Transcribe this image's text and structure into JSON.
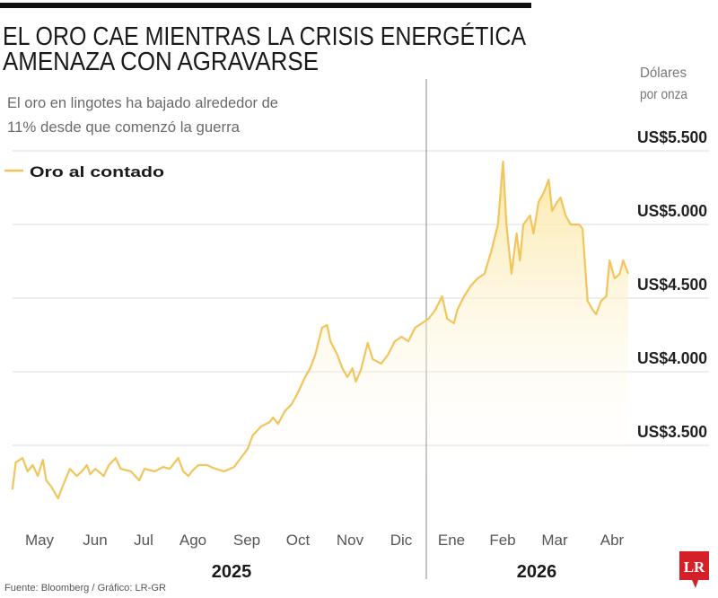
{
  "header": {
    "title_line1": "EL ORO CAE MIENTRAS LA CRISIS ENERGÉTICA",
    "title_line2": "AMENAZA CON AGRAVARSE",
    "subtitle_line1": "El oro en lingotes ha bajado alrededor de",
    "subtitle_line2": "11% desde que comenzó la guerra"
  },
  "footer": {
    "source": "Fuente: Bloomberg / Gráfico: LR-GR",
    "logo": "LR",
    "logo_color": "#d42027"
  },
  "chart_data": {
    "type": "area",
    "title": "EL ORO CAE MIENTRAS LA CRISIS ENERGÉTICA AMENAZA CON AGRAVARSE",
    "ylabel_line1": "Dólares",
    "ylabel_line2": "por onza",
    "ylim": [
      3000,
      5500
    ],
    "yticks": [
      5500,
      5000,
      4500,
      4000,
      3500
    ],
    "ytick_labels": [
      "US$5.500",
      "US$5.000",
      "US$4.500",
      "US$4.000",
      "US$3.500"
    ],
    "xticks": [
      "May",
      "Jun",
      "Jul",
      "Ago",
      "Sep",
      "Oct",
      "Nov",
      "Dic",
      "Ene",
      "Feb",
      "Mar",
      "Abr"
    ],
    "years": [
      "2025",
      "2026"
    ],
    "grid": true,
    "legend_position": "top-left",
    "line_color": "#f2c55c",
    "fill_color": "#fbe6a0",
    "series": [
      {
        "name": "Oro al contado",
        "x": [
          "2025-04-29",
          "2025-05-01",
          "2025-05-05",
          "2025-05-08",
          "2025-05-11",
          "2025-05-14",
          "2025-05-17",
          "2025-05-19",
          "2025-05-22",
          "2025-05-26",
          "2025-05-29",
          "2025-06-02",
          "2025-06-06",
          "2025-06-09",
          "2025-06-12",
          "2025-06-14",
          "2025-06-17",
          "2025-06-22",
          "2025-06-25",
          "2025-06-29",
          "2025-07-02",
          "2025-07-08",
          "2025-07-13",
          "2025-07-16",
          "2025-07-22",
          "2025-07-27",
          "2025-07-31",
          "2025-08-05",
          "2025-08-08",
          "2025-08-11",
          "2025-08-14",
          "2025-08-17",
          "2025-08-22",
          "2025-08-27",
          "2025-09-01",
          "2025-09-07",
          "2025-09-11",
          "2025-09-15",
          "2025-09-18",
          "2025-09-23",
          "2025-09-28",
          "2025-09-30",
          "2025-10-03",
          "2025-10-07",
          "2025-10-11",
          "2025-10-14",
          "2025-10-19",
          "2025-10-22",
          "2025-10-25",
          "2025-10-29",
          "2025-11-01",
          "2025-11-03",
          "2025-11-07",
          "2025-11-10",
          "2025-11-13",
          "2025-11-16",
          "2025-11-18",
          "2025-11-21",
          "2025-11-25",
          "2025-11-28",
          "2025-12-03",
          "2025-12-07",
          "2025-12-11",
          "2025-12-15",
          "2025-12-19",
          "2025-12-23",
          "2025-12-27",
          "2025-12-31",
          "2026-01-04",
          "2026-01-08",
          "2026-01-11",
          "2026-01-15",
          "2026-01-17",
          "2026-01-21",
          "2026-01-25",
          "2026-01-29",
          "2026-02-02",
          "2026-02-06",
          "2026-02-10",
          "2026-02-13",
          "2026-02-15",
          "2026-02-18",
          "2026-02-21",
          "2026-02-23",
          "2026-02-25",
          "2026-03-01",
          "2026-03-03",
          "2026-03-06",
          "2026-03-09",
          "2026-03-12",
          "2026-03-14",
          "2026-03-17",
          "2026-03-19",
          "2026-03-22",
          "2026-03-25",
          "2026-03-30",
          "2026-04-01",
          "2026-04-04",
          "2026-04-07",
          "2026-04-09",
          "2026-04-12",
          "2026-04-15",
          "2026-04-17",
          "2026-04-20",
          "2026-04-23",
          "2026-04-25",
          "2026-04-28"
        ],
        "values": [
          3200,
          3384,
          3414,
          3323,
          3366,
          3292,
          3402,
          3262,
          3219,
          3140,
          3231,
          3341,
          3292,
          3323,
          3366,
          3304,
          3341,
          3292,
          3366,
          3414,
          3341,
          3323,
          3262,
          3341,
          3323,
          3353,
          3341,
          3414,
          3323,
          3292,
          3335,
          3366,
          3366,
          3341,
          3323,
          3353,
          3414,
          3475,
          3567,
          3628,
          3658,
          3689,
          3646,
          3731,
          3780,
          3841,
          3963,
          4024,
          4116,
          4299,
          4317,
          4207,
          4116,
          4024,
          3963,
          4024,
          3933,
          4012,
          4195,
          4085,
          4055,
          4116,
          4207,
          4238,
          4207,
          4299,
          4329,
          4360,
          4421,
          4512,
          4360,
          4329,
          4421,
          4512,
          4585,
          4634,
          4665,
          4817,
          5000,
          5427,
          5000,
          4665,
          4939,
          4756,
          5000,
          5061,
          4939,
          5153,
          5214,
          5305,
          5092,
          5153,
          5183,
          5061,
          5000,
          5000,
          4970,
          4482,
          4421,
          4390,
          4482,
          4512,
          4756,
          4634,
          4665,
          4756,
          4665
        ]
      }
    ]
  }
}
